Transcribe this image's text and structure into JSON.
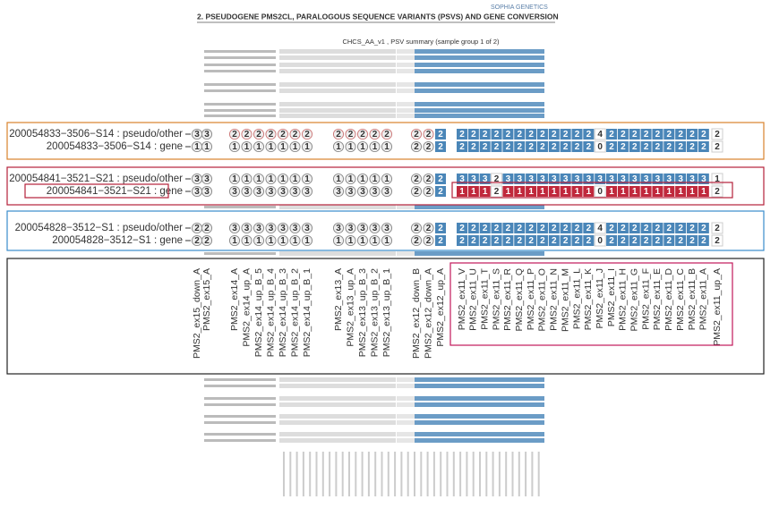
{
  "header": {
    "brand": "SOPHIA GENETICS",
    "title": "2.  PSEUDOGENE PMS2CL, PARALOGOUS SEQUENCE VARIANTS (PSVS) AND GENE CONVERSION"
  },
  "plot_title": "CHCS_AA_v1 , PSV summary (sample group 1 of 2)",
  "zoom": {
    "columns": [
      "PMS2_ex15_down_A",
      "PMS2_ex15_A",
      "PMS2_ex14_A",
      "PMS2_ex14_up_A",
      "PMS2_ex14_up_B_5",
      "PMS2_ex14_up_B_4",
      "PMS2_ex14_up_B_3",
      "PMS2_ex14_up_B_2",
      "PMS2_ex14_up_B_1",
      "PMS2_ex13_A",
      "PMS2_ex13_up_A",
      "PMS2_ex13_up_B_3",
      "PMS2_ex13_up_B_2",
      "PMS2_ex13_up_B_1",
      "PMS2_ex12_down_B",
      "PMS2_ex12_down_A",
      "PMS2_ex12_up_A",
      "PMS2_ex11_V",
      "PMS2_ex11_U",
      "PMS2_ex11_T",
      "PMS2_ex11_S",
      "PMS2_ex11_R",
      "PMS2_ex11_Q",
      "PMS2_ex11_P",
      "PMS2_ex11_O",
      "PMS2_ex11_N",
      "PMS2_ex11_M",
      "PMS2_ex11_L",
      "PMS2_ex11_K",
      "PMS2_ex11_J",
      "PMS2_ex11_I",
      "PMS2_ex11_H",
      "PMS2_ex11_G",
      "PMS2_ex11_F",
      "PMS2_ex11_E",
      "PMS2_ex11_D",
      "PMS2_ex11_C",
      "PMS2_ex11_B",
      "PMS2_ex11_A",
      "PMS2_ex11_up_A"
    ],
    "samples": [
      {
        "rows": [
          {
            "label": "200054833−3506−S14 : pseudo/other",
            "values": [
              3,
              3,
              2,
              2,
              2,
              2,
              2,
              2,
              2,
              2,
              2,
              2,
              2,
              2,
              2,
              2,
              2,
              2,
              2,
              2,
              2,
              2,
              2,
              2,
              2,
              2,
              2,
              2,
              2,
              4,
              2,
              2,
              2,
              2,
              2,
              2,
              2,
              2,
              2,
              2
            ]
          },
          {
            "label": "200054833−3506−S14 : gene",
            "values": [
              1,
              1,
              1,
              1,
              1,
              1,
              1,
              1,
              1,
              1,
              1,
              1,
              1,
              1,
              2,
              2,
              2,
              2,
              2,
              2,
              2,
              2,
              2,
              2,
              2,
              2,
              2,
              2,
              2,
              0,
              2,
              2,
              2,
              2,
              2,
              2,
              2,
              2,
              2,
              2
            ]
          }
        ]
      },
      {
        "rows": [
          {
            "label": "200054841−3521−S21 : pseudo/other",
            "values": [
              3,
              3,
              1,
              1,
              1,
              1,
              1,
              1,
              1,
              1,
              1,
              1,
              1,
              1,
              2,
              2,
              2,
              3,
              3,
              3,
              2,
              3,
              3,
              3,
              3,
              3,
              3,
              3,
              3,
              3,
              3,
              3,
              3,
              3,
              3,
              3,
              3,
              3,
              3,
              1
            ]
          },
          {
            "label": "200054841−3521−S21 : gene",
            "values": [
              3,
              3,
              3,
              3,
              3,
              3,
              3,
              3,
              3,
              3,
              3,
              3,
              3,
              3,
              2,
              2,
              2,
              1,
              1,
              1,
              2,
              1,
              1,
              1,
              1,
              1,
              1,
              1,
              1,
              0,
              1,
              1,
              1,
              1,
              1,
              1,
              1,
              1,
              1,
              2
            ]
          }
        ]
      },
      {
        "rows": [
          {
            "label": "200054828−3512−S1 : pseudo/other",
            "values": [
              2,
              2,
              3,
              3,
              3,
              3,
              3,
              3,
              3,
              3,
              3,
              3,
              3,
              3,
              2,
              2,
              2,
              2,
              2,
              2,
              2,
              2,
              2,
              2,
              2,
              2,
              2,
              2,
              2,
              4,
              2,
              2,
              2,
              2,
              2,
              2,
              2,
              2,
              2,
              2
            ]
          },
          {
            "label": "200054828−3512−S1 : gene",
            "values": [
              2,
              2,
              1,
              1,
              1,
              1,
              1,
              1,
              1,
              1,
              1,
              1,
              1,
              1,
              2,
              2,
              2,
              2,
              2,
              2,
              2,
              2,
              2,
              2,
              2,
              2,
              2,
              2,
              2,
              0,
              2,
              2,
              2,
              2,
              2,
              2,
              2,
              2,
              2,
              2
            ]
          }
        ]
      }
    ]
  }
}
